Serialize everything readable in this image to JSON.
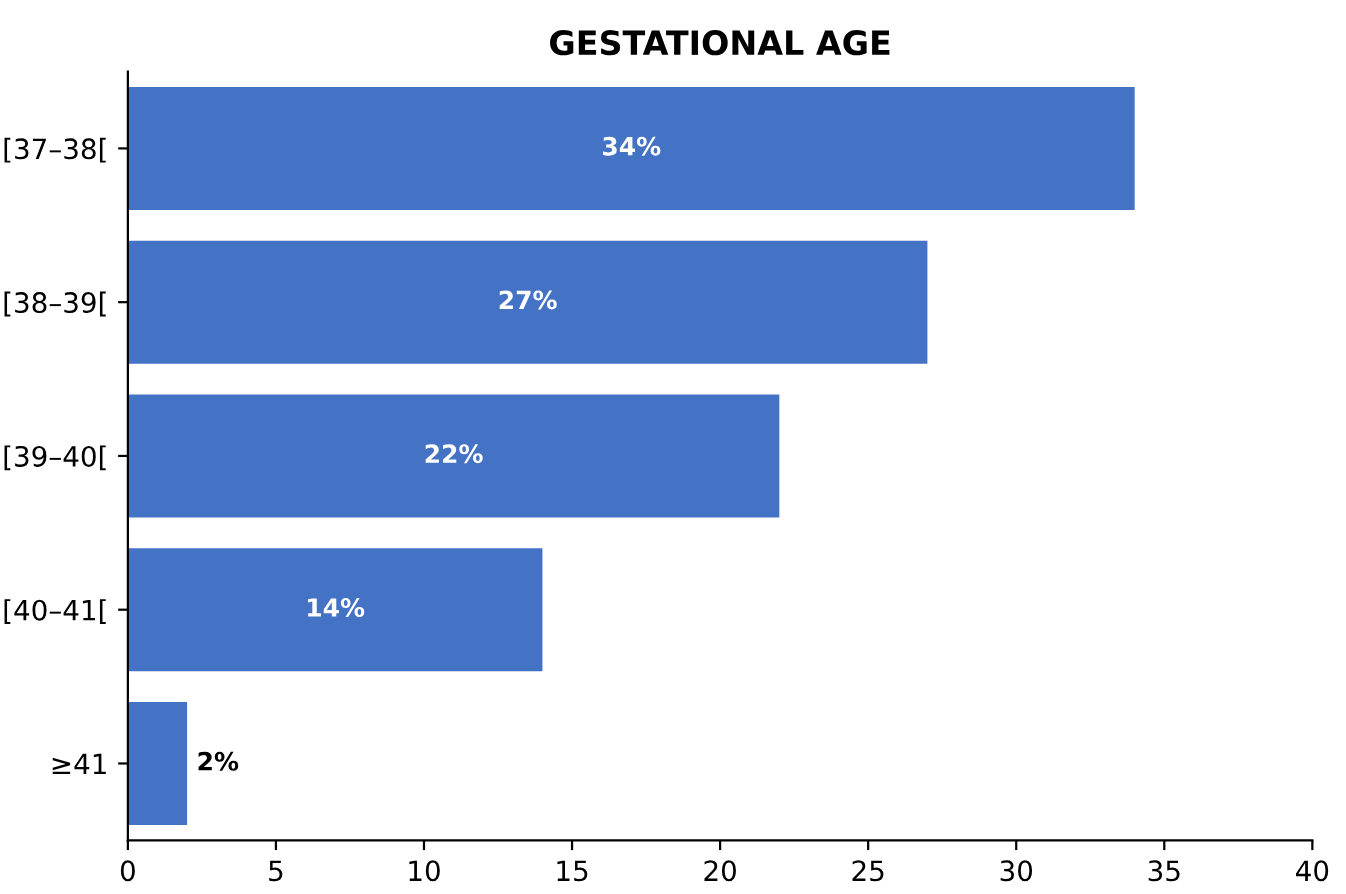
{
  "chart_data": {
    "type": "bar",
    "title": "GESTATIONAL AGE",
    "orientation": "horizontal",
    "categories": [
      "[37–38[",
      "[38–39[",
      "[39–40[",
      "[40–41[",
      "≥41"
    ],
    "values": [
      34,
      27,
      22,
      14,
      2
    ],
    "value_labels": [
      "34%",
      "27%",
      "22%",
      "14%",
      "2%"
    ],
    "color": "#4472c4",
    "xlim": [
      0,
      40
    ],
    "xticks": [
      0,
      5,
      10,
      15,
      20,
      25,
      30,
      35,
      40
    ],
    "grid": false,
    "legend": false
  }
}
